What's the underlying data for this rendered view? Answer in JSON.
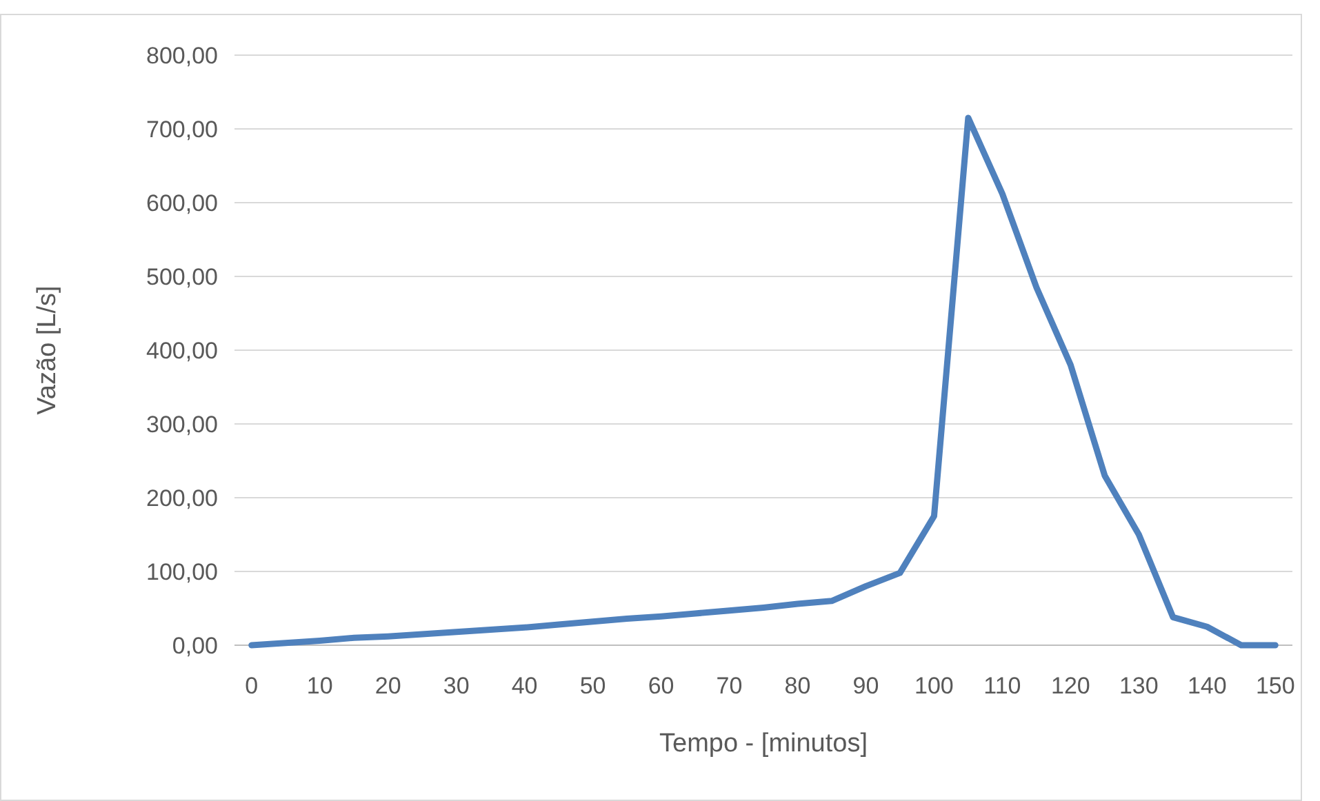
{
  "chart_data": {
    "type": "line",
    "xlabel": "Tempo - [minutos]",
    "ylabel": "Vazão [L/s]",
    "x": [
      0,
      5,
      10,
      15,
      20,
      25,
      30,
      35,
      40,
      45,
      50,
      55,
      60,
      65,
      70,
      75,
      80,
      85,
      90,
      95,
      100,
      105,
      110,
      115,
      120,
      125,
      130,
      135,
      140,
      145,
      150
    ],
    "series": [
      {
        "color": "#4f81bd",
        "values": [
          0,
          3,
          6,
          10,
          12,
          15,
          18,
          21,
          24,
          28,
          32,
          36,
          39,
          43,
          47,
          51,
          56,
          60,
          80,
          98,
          175,
          715,
          612,
          485,
          380,
          230,
          150,
          38,
          25,
          0,
          0
        ]
      }
    ],
    "xlim": [
      -2.5,
      152.5
    ],
    "xticks": [
      0,
      10,
      20,
      30,
      40,
      50,
      60,
      70,
      80,
      90,
      100,
      110,
      120,
      130,
      140,
      150
    ],
    "ylim": [
      0,
      800
    ],
    "yticks": [
      {
        "value": 0,
        "label": "0,00"
      },
      {
        "value": 100,
        "label": "100,00"
      },
      {
        "value": 200,
        "label": "200,00"
      },
      {
        "value": 300,
        "label": "300,00"
      },
      {
        "value": 400,
        "label": "400,00"
      },
      {
        "value": 500,
        "label": "500,00"
      },
      {
        "value": 600,
        "label": "600,00"
      },
      {
        "value": 700,
        "label": "700,00"
      },
      {
        "value": 800,
        "label": "800,00"
      }
    ],
    "grid": "y",
    "marker": "none",
    "line_style": "solid"
  }
}
